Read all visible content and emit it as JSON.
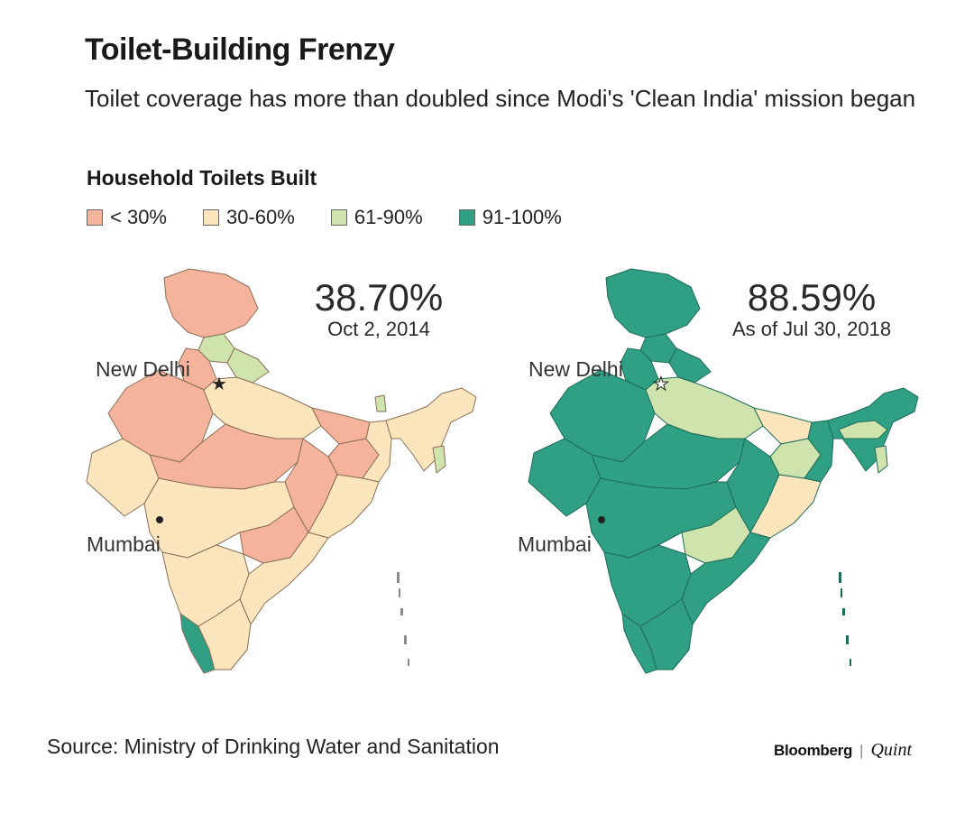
{
  "title": "Toilet-Building Frenzy",
  "subtitle": "Toilet coverage has more than doubled since Modi's 'Clean India' mission began",
  "legend": {
    "title": "Household Toilets Built",
    "items": [
      {
        "label": "< 30%",
        "color": "#f4b39a"
      },
      {
        "label": "30-60%",
        "color": "#fbe5bd"
      },
      {
        "label": "61-90%",
        "color": "#cfe4ac"
      },
      {
        "label": "91-100%",
        "color": "#2fa083"
      }
    ]
  },
  "maps": [
    {
      "value": "38.70%",
      "date": "Oct 2, 2014",
      "label_delhi": "New Delhi",
      "label_mumbai": "Mumbai"
    },
    {
      "value": "88.59%",
      "date": "As of Jul 30, 2018",
      "label_delhi": "New Delhi",
      "label_mumbai": "Mumbai"
    }
  ],
  "source": "Source: Ministry of Drinking Water and Sanitation",
  "brand": {
    "name": "Bloomberg",
    "separator": "|",
    "partner": "Quint"
  }
}
